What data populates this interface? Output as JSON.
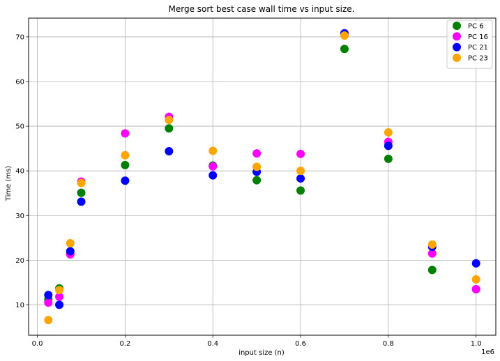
{
  "chart_data": {
    "type": "scatter",
    "title": "Merge sort best case wall time vs input size.",
    "xlabel": "input size (n)",
    "ylabel": "Time (ms)",
    "x_offset_label": "1e6",
    "xlim": [
      -0.02,
      1.045
    ],
    "ylim": [
      3.2,
      74.2
    ],
    "x_ticks": [
      0.0,
      0.2,
      0.4,
      0.6,
      0.8,
      1.0
    ],
    "x_tick_labels": [
      "0.0",
      "0.2",
      "0.4",
      "0.6",
      "0.8",
      "1.0"
    ],
    "y_ticks": [
      10,
      20,
      30,
      40,
      50,
      60,
      70
    ],
    "y_tick_labels": [
      "10",
      "20",
      "30",
      "40",
      "50",
      "60",
      "70"
    ],
    "grid": true,
    "legend_position": "top-right",
    "x": [
      0.025,
      0.05,
      0.075,
      0.1,
      0.2,
      0.3,
      0.4,
      0.5,
      0.6,
      0.7,
      0.8,
      0.9,
      1.0
    ],
    "series": [
      {
        "name": "PC 6",
        "color": "#008000",
        "values": [
          11.2,
          13.7,
          21.5,
          35.1,
          41.3,
          49.5,
          41.2,
          37.9,
          35.6,
          67.3,
          42.7,
          17.8,
          13.5
        ]
      },
      {
        "name": "PC 16",
        "color": "#ff00ff",
        "values": [
          10.5,
          11.8,
          21.3,
          37.6,
          48.4,
          52.1,
          41.0,
          43.9,
          43.8,
          70.6,
          46.5,
          21.5,
          13.5
        ]
      },
      {
        "name": "PC 21",
        "color": "#0000ff",
        "values": [
          12.2,
          10.0,
          22.0,
          33.1,
          37.8,
          44.4,
          39.0,
          39.8,
          38.3,
          70.8,
          45.6,
          23.0,
          19.3
        ]
      },
      {
        "name": "PC 23",
        "color": "#ffa500",
        "values": [
          6.6,
          13.3,
          23.8,
          37.3,
          43.5,
          51.4,
          44.5,
          40.9,
          40.0,
          70.3,
          48.6,
          23.5,
          15.7
        ]
      }
    ]
  }
}
